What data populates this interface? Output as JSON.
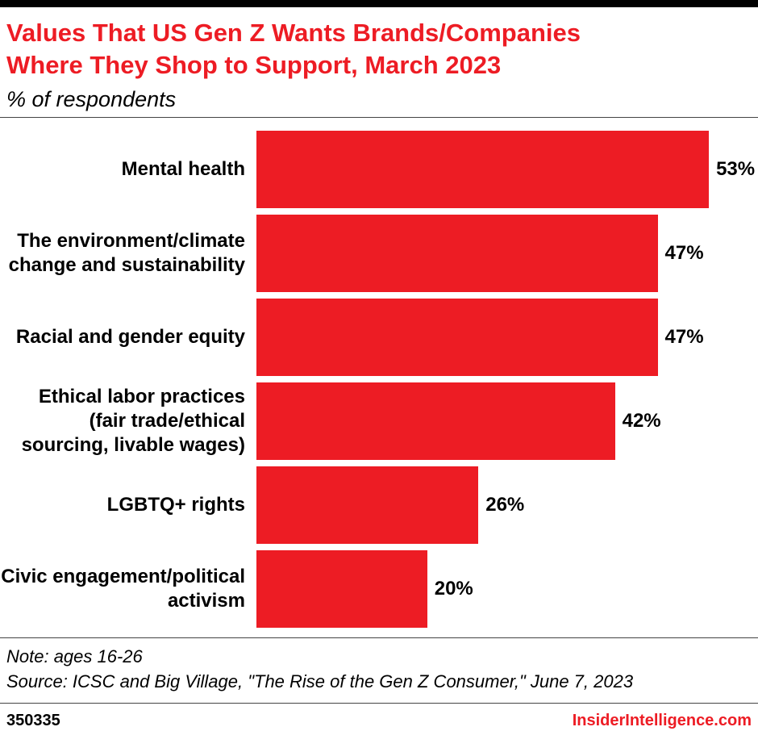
{
  "header": {
    "title": "Values That US Gen Z Wants Brands/Companies Where They Shop to Support, March 2023",
    "subtitle": "% of respondents"
  },
  "chart_data": {
    "type": "bar",
    "orientation": "horizontal",
    "title": "Values That US Gen Z Wants Brands/Companies Where They Shop to Support, March 2023",
    "subtitle": "% of respondents",
    "categories": [
      "Mental health",
      "The environment/climate change and sustainability",
      "Racial and gender equity",
      "Ethical labor practices (fair trade/ethical sourcing, livable wages)",
      "LGBTQ+ rights",
      "Civic engagement/political activism"
    ],
    "values": [
      53,
      47,
      47,
      42,
      26,
      20
    ],
    "value_suffix": "%",
    "bar_color": "#ED1C24",
    "xlim": [
      0,
      58
    ],
    "grid": false,
    "legend": "none"
  },
  "footer": {
    "note": "Note: ages 16-26",
    "source": "Source: ICSC and Big Village, \"The Rise of the Gen Z Consumer,\" June 7, 2023",
    "chart_id": "350335",
    "brand": "InsiderIntelligence.com",
    "brand_color": "#ED1C24"
  }
}
